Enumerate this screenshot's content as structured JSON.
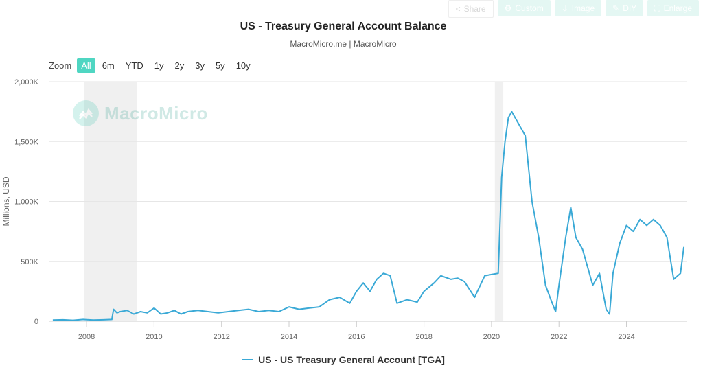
{
  "toolbar": {
    "share": "Share",
    "custom": "Custom",
    "image": "Image",
    "diy": "DIY",
    "enlarge": "Enlarge"
  },
  "zoom": {
    "label": "Zoom",
    "options": [
      "All",
      "6m",
      "YTD",
      "1y",
      "2y",
      "3y",
      "5y",
      "10y"
    ],
    "active": "All"
  },
  "watermark": "MacroMicro",
  "colors": {
    "series": "#3aa9d6",
    "accent": "#4fd6c2",
    "recession": "#f0f0f0",
    "grid": "#e6e6e6"
  },
  "chart_data": {
    "type": "line",
    "title": "US - Treasury General Account Balance",
    "subtitle": "MacroMicro.me | MacroMicro",
    "ylabel": "Millions, USD",
    "xlabel": "",
    "ylim": [
      0,
      2000000
    ],
    "xlim": [
      2006.9,
      2025.8
    ],
    "yticks": [
      0,
      500000,
      1000000,
      1500000,
      2000000
    ],
    "ytick_labels": [
      "0",
      "500K",
      "1,000K",
      "1,500K",
      "2,000K"
    ],
    "xticks": [
      2008,
      2010,
      2012,
      2014,
      2016,
      2018,
      2020,
      2022,
      2024
    ],
    "xtick_labels": [
      "2008",
      "2010",
      "2012",
      "2014",
      "2016",
      "2018",
      "2020",
      "2022",
      "2024"
    ],
    "grid": true,
    "legend_position": "bottom-center",
    "shaded_periods": [
      [
        2007.92,
        2009.5
      ],
      [
        2020.1,
        2020.35
      ]
    ],
    "series": [
      {
        "name": "US - US Treasury General Account [TGA]",
        "x": [
          2007.0,
          2007.3,
          2007.6,
          2007.9,
          2008.2,
          2008.5,
          2008.75,
          2008.8,
          2008.9,
          2009.0,
          2009.2,
          2009.4,
          2009.6,
          2009.8,
          2010.0,
          2010.2,
          2010.4,
          2010.6,
          2010.8,
          2011.0,
          2011.3,
          2011.6,
          2011.9,
          2012.2,
          2012.5,
          2012.8,
          2013.1,
          2013.4,
          2013.7,
          2014.0,
          2014.3,
          2014.6,
          2014.9,
          2015.2,
          2015.5,
          2015.8,
          2016.0,
          2016.2,
          2016.4,
          2016.6,
          2016.8,
          2017.0,
          2017.2,
          2017.5,
          2017.8,
          2018.0,
          2018.3,
          2018.5,
          2018.8,
          2019.0,
          2019.2,
          2019.5,
          2019.8,
          2020.0,
          2020.2,
          2020.3,
          2020.4,
          2020.5,
          2020.6,
          2020.7,
          2020.8,
          2020.9,
          2021.0,
          2021.2,
          2021.4,
          2021.6,
          2021.8,
          2021.9,
          2022.0,
          2022.2,
          2022.35,
          2022.5,
          2022.7,
          2022.9,
          2023.0,
          2023.2,
          2023.4,
          2023.5,
          2023.6,
          2023.8,
          2024.0,
          2024.2,
          2024.4,
          2024.6,
          2024.8,
          2025.0,
          2025.2,
          2025.4,
          2025.6,
          2025.7
        ],
        "values": [
          10000,
          12000,
          8000,
          15000,
          10000,
          12000,
          15000,
          100000,
          70000,
          80000,
          90000,
          60000,
          80000,
          70000,
          110000,
          60000,
          70000,
          90000,
          60000,
          80000,
          90000,
          80000,
          70000,
          80000,
          90000,
          100000,
          80000,
          90000,
          80000,
          120000,
          100000,
          110000,
          120000,
          180000,
          200000,
          150000,
          250000,
          320000,
          250000,
          350000,
          400000,
          380000,
          150000,
          180000,
          160000,
          250000,
          320000,
          380000,
          350000,
          360000,
          330000,
          200000,
          380000,
          390000,
          400000,
          1200000,
          1500000,
          1700000,
          1750000,
          1700000,
          1650000,
          1600000,
          1550000,
          1000000,
          700000,
          300000,
          150000,
          80000,
          300000,
          700000,
          950000,
          700000,
          600000,
          400000,
          300000,
          400000,
          100000,
          60000,
          400000,
          650000,
          800000,
          750000,
          850000,
          800000,
          850000,
          800000,
          700000,
          350000,
          400000,
          620000
        ]
      }
    ]
  }
}
